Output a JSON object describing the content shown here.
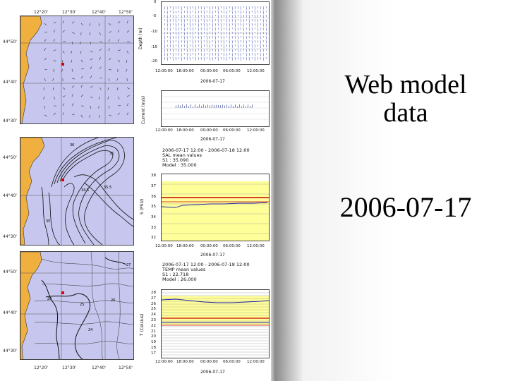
{
  "slide": {
    "title_line1": "Web model",
    "title_line2": "data",
    "date_title": "2006-07-17"
  },
  "figure": {
    "map_lon_ticks": [
      "12°20'",
      "12°30'",
      "12°40'",
      "12°50'"
    ],
    "map_lat_ticks": [
      "44°50'",
      "44°40'",
      "44°30'"
    ],
    "panel_date": "2006-07-17",
    "time_ticks": [
      "12:00:00",
      "18:00:00",
      "00:00:00",
      "06:00:00",
      "12:00:00"
    ],
    "depth_panel": {
      "ylabel": "Depth (m)",
      "y_ticks": [
        "0",
        "-5",
        "-10",
        "-15",
        "-20"
      ]
    },
    "current_panel": {
      "ylabel": "Current (m/s)"
    },
    "sal_panel": {
      "header_line1": "2006-07-17 12:00 - 2006-07-18 12:00",
      "header_line2": "SAL mean values",
      "header_line3": "S1     : 35.090",
      "header_line4": "Model : 35.000",
      "ylabel": "S (PSU)",
      "y_ticks": [
        "38",
        "37",
        "36",
        "35",
        "34",
        "33",
        "32"
      ]
    },
    "temp_panel": {
      "header_line1": "2006-07-17 12:00 - 2006-07-18 12:00",
      "header_line2": "TEMP mean values",
      "header_line3": "S1     : 22.718",
      "header_line4": "Model : 26.000",
      "ylabel": "T (Celsius)",
      "y_ticks": [
        "28",
        "27",
        "26",
        "25",
        "24",
        "23",
        "22",
        "21",
        "20",
        "19",
        "18",
        "17"
      ]
    }
  },
  "colors": {
    "sea": "#c6c6ee",
    "land": "#f0b040",
    "model_band": "#ffff99",
    "observation_line": "#2222aa",
    "model_line": "#cc0000",
    "station_marker": "#dd0000"
  }
}
